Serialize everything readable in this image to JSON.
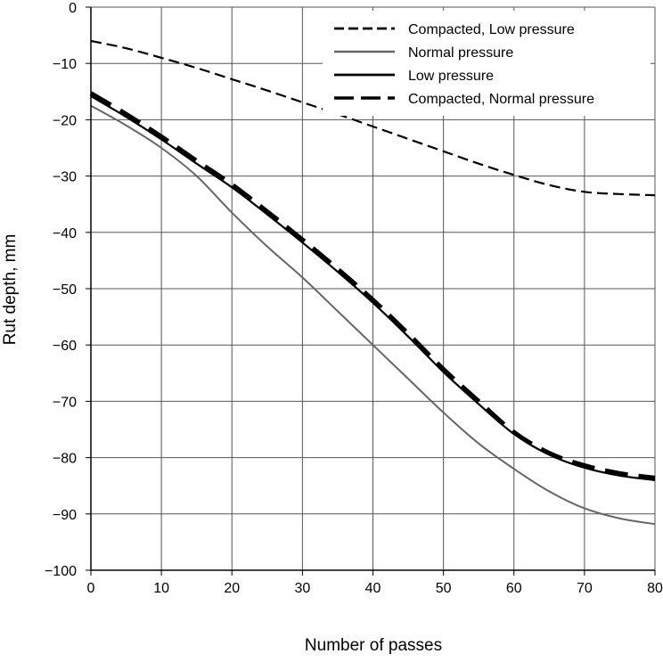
{
  "chart_data": {
    "type": "line",
    "title": "",
    "xlabel": "Number of passes",
    "ylabel": "Rut depth, mm",
    "xlim": [
      0,
      80
    ],
    "ylim": [
      -100,
      0
    ],
    "x_ticks": [
      0,
      10,
      20,
      30,
      40,
      50,
      60,
      70,
      80
    ],
    "y_ticks": [
      0,
      -10,
      -20,
      -30,
      -40,
      -50,
      -60,
      -70,
      -80,
      -90,
      -100
    ],
    "x_tick_labels": [
      "0",
      "10",
      "20",
      "30",
      "40",
      "50",
      "60",
      "70",
      "80"
    ],
    "y_tick_labels": [
      "0",
      "−10",
      "−20",
      "−30",
      "−40",
      "−50",
      "−60",
      "−70",
      "−80",
      "−90",
      "−100"
    ],
    "grid": true,
    "legend_position": "top-right",
    "series": [
      {
        "name": "Compacted, Low pressure",
        "style": "dashed",
        "color": "#000000",
        "x": [
          0,
          5,
          10,
          15,
          20,
          25,
          30,
          35,
          40,
          45,
          50,
          55,
          60,
          65,
          70,
          75,
          80
        ],
        "y": [
          -6,
          -7.3,
          -9,
          -10.8,
          -12.8,
          -14.8,
          -16.9,
          -19,
          -21.2,
          -23.4,
          -25.6,
          -27.8,
          -29.8,
          -31.6,
          -32.8,
          -33.2,
          -33.4
        ]
      },
      {
        "name": "Normal pressure",
        "style": "solid",
        "color": "#666666",
        "x": [
          0,
          5,
          10,
          15,
          20,
          25,
          30,
          35,
          40,
          45,
          50,
          55,
          60,
          65,
          70,
          75,
          80
        ],
        "y": [
          -17.5,
          -21,
          -25,
          -30,
          -36.5,
          -42.5,
          -48,
          -54,
          -60,
          -66,
          -72,
          -77.5,
          -82,
          -86,
          -89,
          -90.8,
          -91.8
        ]
      },
      {
        "name": "Low pressure",
        "style": "solid",
        "color": "#000000",
        "x": [
          0,
          5,
          10,
          15,
          20,
          25,
          30,
          35,
          40,
          45,
          50,
          55,
          60,
          65,
          70,
          75,
          80
        ],
        "y": [
          -15.8,
          -19.5,
          -23.5,
          -27.8,
          -32,
          -36.8,
          -41.8,
          -47,
          -52.5,
          -58.5,
          -64.8,
          -70.5,
          -75.8,
          -79.5,
          -81.8,
          -83.2,
          -84
        ]
      },
      {
        "name": "Compacted, Normal pressure",
        "style": "long-dashed",
        "color": "#000000",
        "x": [
          0,
          5,
          10,
          15,
          20,
          25,
          30,
          35,
          40,
          45,
          50,
          55,
          60,
          65,
          70,
          75,
          80
        ],
        "y": [
          -15.3,
          -19,
          -23,
          -27.3,
          -31.5,
          -36.3,
          -41.3,
          -46.5,
          -52,
          -58,
          -64.3,
          -70,
          -75.5,
          -79.2,
          -81.4,
          -82.8,
          -83.6
        ]
      }
    ]
  }
}
